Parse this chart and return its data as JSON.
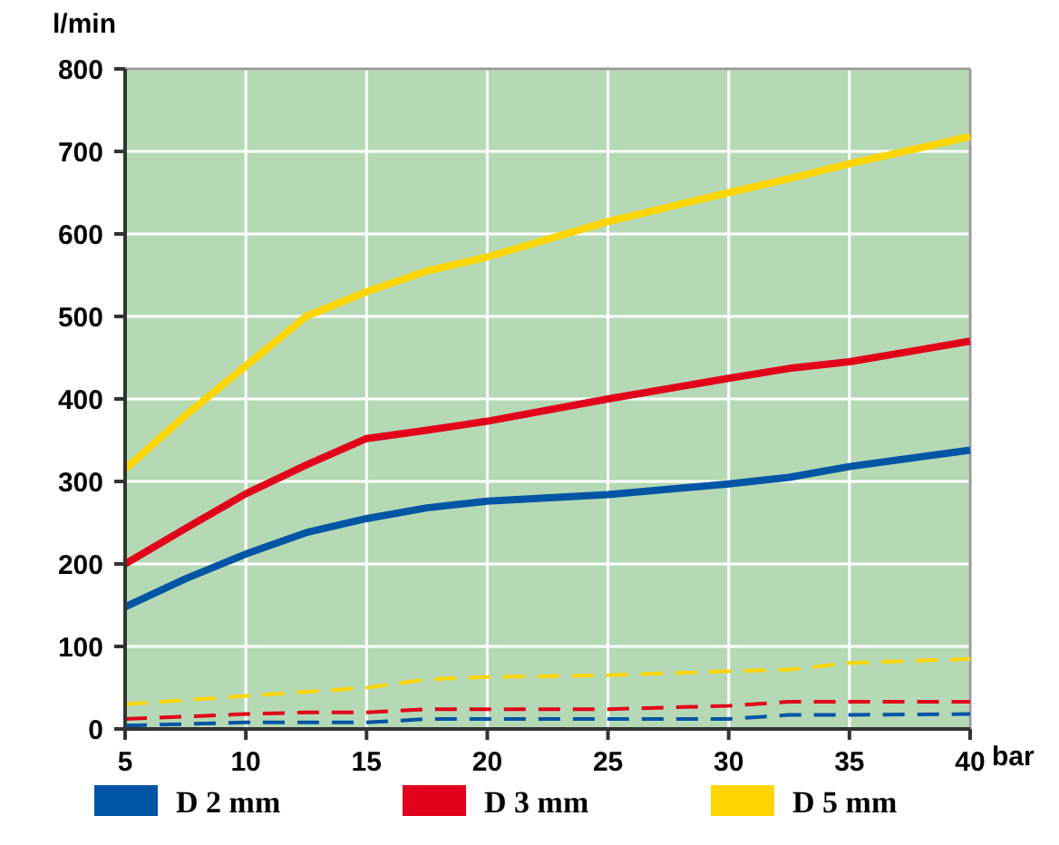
{
  "chart_data": {
    "type": "line",
    "xlabel": "bar",
    "ylabel": "l/min",
    "x": [
      5,
      7.5,
      10,
      12.5,
      15,
      17.5,
      20,
      25,
      30,
      32.5,
      35,
      40
    ],
    "xlim": [
      5,
      40
    ],
    "xticks": [
      5,
      10,
      15,
      20,
      25,
      30,
      35,
      40
    ],
    "ylim": [
      0,
      800
    ],
    "yticks": [
      0,
      100,
      200,
      300,
      400,
      500,
      600,
      700,
      800
    ],
    "grid": true,
    "legend": "bottom",
    "series": [
      {
        "name": "D 2 mm",
        "color": "#0055a4",
        "line_style": "solid",
        "values": [
          148,
          182,
          212,
          238,
          255,
          268,
          276,
          284,
          297,
          305,
          318,
          338
        ]
      },
      {
        "name": "D 3 mm",
        "color": "#e2001a",
        "line_style": "solid",
        "values": [
          200,
          243,
          285,
          320,
          352,
          362,
          373,
          400,
          425,
          437,
          445,
          470
        ]
      },
      {
        "name": "D 5 mm",
        "color": "#ffd500",
        "line_style": "solid",
        "values": [
          315,
          380,
          440,
          500,
          530,
          555,
          572,
          615,
          650,
          667,
          685,
          718
        ]
      },
      {
        "color": "#0055a4",
        "line_style": "dashed",
        "values": [
          4,
          6,
          8,
          8,
          8,
          12,
          12,
          12,
          12,
          17,
          17,
          18
        ]
      },
      {
        "color": "#e2001a",
        "line_style": "dashed",
        "values": [
          12,
          15,
          18,
          20,
          20,
          24,
          24,
          24,
          28,
          33,
          33,
          33
        ]
      },
      {
        "color": "#ffd500",
        "line_style": "dashed",
        "values": [
          30,
          35,
          40,
          45,
          50,
          60,
          63,
          65,
          70,
          72,
          80,
          85
        ]
      }
    ]
  }
}
